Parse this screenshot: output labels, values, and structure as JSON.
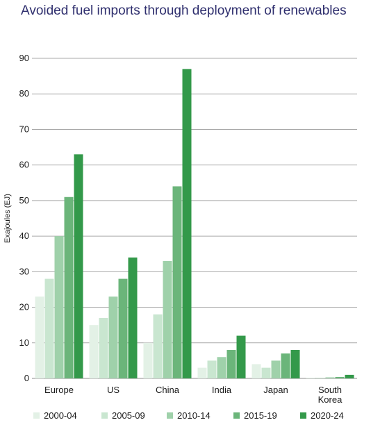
{
  "title": "Avoided fuel imports through deployment of renewables",
  "chart_data": {
    "type": "bar",
    "title": "Avoided fuel imports through deployment of renewables",
    "xlabel": "",
    "ylabel": "Exajoules (EJ)",
    "ylim": [
      0,
      90
    ],
    "yticks": [
      0,
      10,
      20,
      30,
      40,
      50,
      60,
      70,
      80,
      90
    ],
    "grid": true,
    "legend_position": "bottom",
    "categories": [
      [
        "Europe"
      ],
      [
        "US"
      ],
      [
        "China"
      ],
      [
        "India"
      ],
      [
        "Japan"
      ],
      [
        "South",
        "Korea"
      ]
    ],
    "series": [
      {
        "name": "2000-04",
        "color": "#e3f1e6",
        "values": [
          23,
          15,
          10,
          3,
          4,
          0.2
        ]
      },
      {
        "name": "2005-09",
        "color": "#c9e6d0",
        "values": [
          28,
          17,
          18,
          5,
          3,
          0.2
        ]
      },
      {
        "name": "2010-14",
        "color": "#9fd1aa",
        "values": [
          40,
          23,
          33,
          6,
          5,
          0.3
        ]
      },
      {
        "name": "2015-19",
        "color": "#6bb57a",
        "values": [
          51,
          28,
          54,
          8,
          7,
          0.4
        ]
      },
      {
        "name": "2020-24",
        "color": "#33994a",
        "values": [
          63,
          34,
          87,
          12,
          8,
          1
        ]
      }
    ]
  }
}
